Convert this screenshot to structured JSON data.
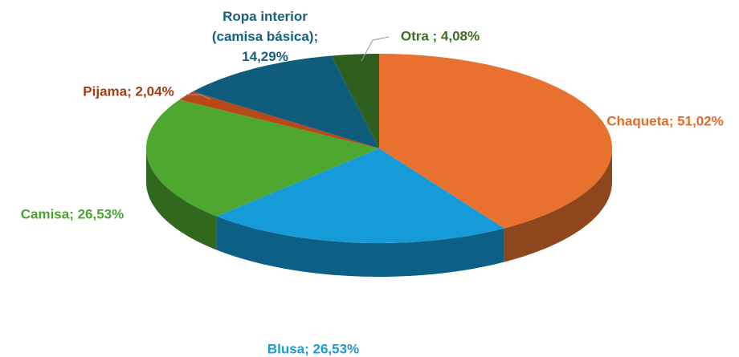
{
  "chart_data": {
    "type": "pie",
    "values": [
      51.02,
      26.53,
      26.53,
      2.04,
      14.29,
      4.08
    ],
    "value_labels": [
      "Chaqueta; 51,02%",
      "Blusa; 26,53%",
      "Camisa; 26,53%",
      "Pijama; 2,04%",
      "Ropa interior\n(camisa básica);\n14,29%",
      "Otra ; 4,08%"
    ],
    "colors": [
      "#e8712f",
      "#149bd8",
      "#4ea72e",
      "#b8481a",
      "#0f5c7c",
      "#2f5f1f"
    ],
    "label_colors": [
      "#e46c25",
      "#1a9ad6",
      "#4aa52e",
      "#a33d14",
      "#17607f",
      "#3b6e22"
    ]
  }
}
